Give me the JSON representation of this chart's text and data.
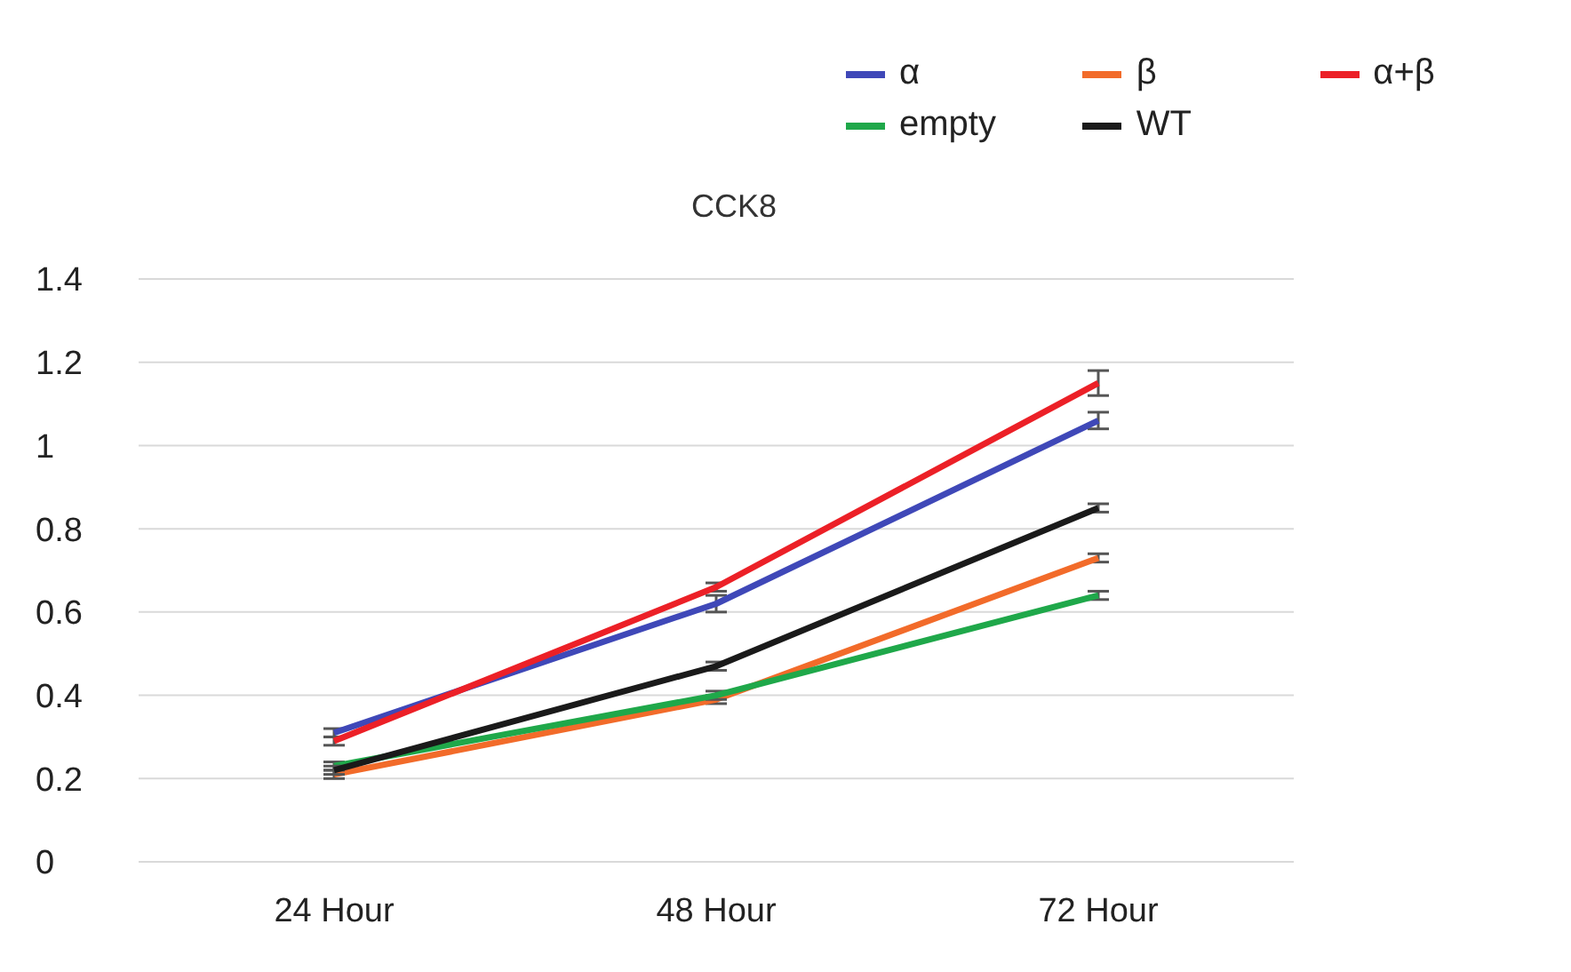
{
  "chart_data": {
    "type": "line",
    "title": "CCK8",
    "categories": [
      "24 Hour",
      "48 Hour",
      "72 Hour"
    ],
    "series": [
      {
        "name": "α",
        "color": "#3f48b8",
        "values": [
          0.31,
          0.62,
          1.06
        ],
        "errors": [
          0.01,
          0.02,
          0.02
        ]
      },
      {
        "name": "β",
        "color": "#f26b2a",
        "values": [
          0.21,
          0.39,
          0.73
        ],
        "errors": [
          0.01,
          0.01,
          0.01
        ]
      },
      {
        "name": "α+β",
        "color": "#ec2027",
        "values": [
          0.29,
          0.66,
          1.15
        ],
        "errors": [
          0.01,
          0.01,
          0.03
        ]
      },
      {
        "name": "empty",
        "color": "#1fa84a",
        "values": [
          0.23,
          0.4,
          0.64
        ],
        "errors": [
          0.01,
          0.01,
          0.01
        ]
      },
      {
        "name": "WT",
        "color": "#1a1a1a",
        "values": [
          0.22,
          0.47,
          0.85
        ],
        "errors": [
          0.01,
          0.01,
          0.01
        ]
      }
    ],
    "ylim": [
      0,
      1.4
    ],
    "yticks": [
      0,
      0.2,
      0.4,
      0.6,
      0.8,
      1,
      1.2,
      1.4
    ],
    "grid": "y",
    "legend": "top right",
    "marker": "none",
    "line_style": "solid"
  }
}
